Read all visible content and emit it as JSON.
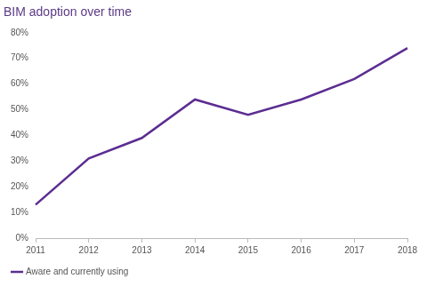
{
  "chart_data": {
    "type": "line",
    "title": "BIM adoption over time",
    "categories": [
      "2011",
      "2012",
      "2013",
      "2014",
      "2015",
      "2016",
      "2017",
      "2018"
    ],
    "series": [
      {
        "name": "Aware and currently using",
        "color": "#5c2d91",
        "values": [
          13,
          31,
          39,
          54,
          48,
          54,
          62,
          74
        ]
      }
    ],
    "ylim": [
      0,
      80
    ],
    "yticks": [
      {
        "value": 0,
        "label": "0%"
      },
      {
        "value": 10,
        "label": "10%"
      },
      {
        "value": 20,
        "label": "20%"
      },
      {
        "value": 30,
        "label": "30%"
      },
      {
        "value": 40,
        "label": "40%"
      },
      {
        "value": 50,
        "label": "50%"
      },
      {
        "value": 60,
        "label": "60%"
      },
      {
        "value": 70,
        "label": "70%"
      },
      {
        "value": 80,
        "label": "80%"
      }
    ],
    "grid": false,
    "legend": "bottom-left"
  }
}
